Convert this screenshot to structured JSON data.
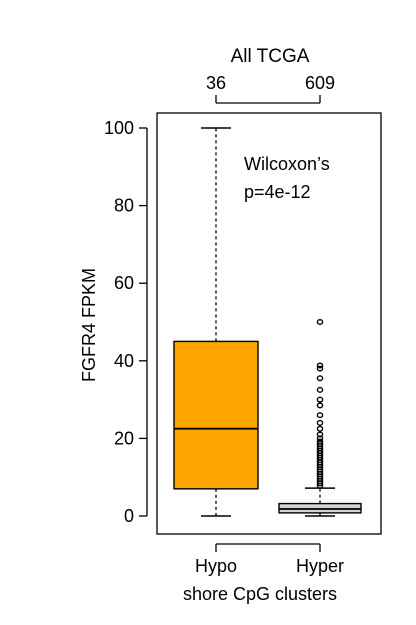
{
  "chart_data": {
    "type": "boxplot",
    "title": "All TCGA",
    "ylabel": "FGFR4 FPKM",
    "xlabel": "shore CpG clusters",
    "ylim": [
      0,
      100
    ],
    "yticks": [
      0,
      20,
      40,
      60,
      80,
      100
    ],
    "grid": false,
    "annotation": [
      "Wilcoxon’s",
      "p=4e-12"
    ],
    "groups": [
      {
        "label": "Hypo",
        "n": "36",
        "color": "#FFA500",
        "min": 0,
        "q1": 7,
        "median": 22.5,
        "q3": 45,
        "max": 100,
        "outliers": []
      },
      {
        "label": "Hyper",
        "n": "609",
        "color": "#D3D3D3",
        "min": 0,
        "q1": 0.8,
        "median": 1.8,
        "q3": 3.2,
        "max": 7.2,
        "outliers": [
          7.8,
          8.4,
          9,
          9.6,
          10.2,
          10.8,
          11.4,
          12,
          12.6,
          13.2,
          13.8,
          14.4,
          15,
          15.6,
          16.2,
          16.8,
          17.4,
          18,
          18.6,
          19.2,
          20,
          21,
          22.5,
          24,
          26,
          28.5,
          30,
          32.5,
          35.5,
          38,
          38.8,
          50
        ]
      }
    ]
  }
}
